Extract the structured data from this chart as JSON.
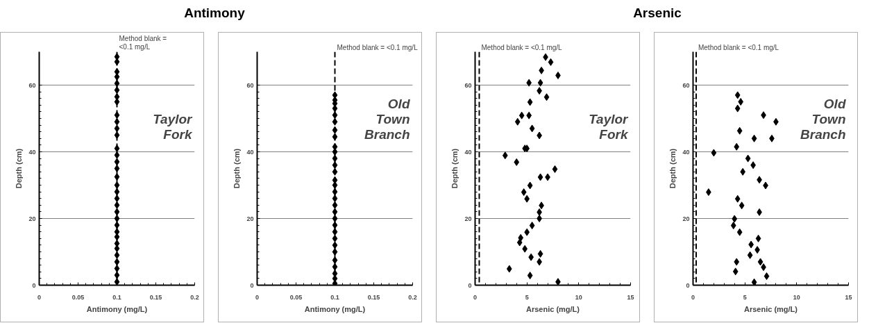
{
  "chart_data": [
    {
      "type": "scatter",
      "title": "Antimony",
      "xlabel": "Antimony (mg/L)",
      "ylabel": "Depth (cm)",
      "xlim": [
        0,
        0.2
      ],
      "xticks": [
        0,
        0.05,
        0.1,
        0.15,
        0.2
      ],
      "ylim": [
        0,
        70
      ],
      "yticks": [
        0,
        20,
        40,
        60
      ],
      "grid": "y",
      "marker": "diamond",
      "series": [
        {
          "color": "#000000",
          "x": [
            0.1,
            0.1,
            0.1,
            0.1,
            0.1,
            0.1,
            0.1,
            0.1,
            0.1,
            0.1,
            0.1,
            0.1,
            0.1,
            0.1,
            0.1,
            0.1,
            0.1,
            0.1,
            0.1,
            0.1,
            0.1,
            0.1,
            0.1,
            0.1,
            0.1,
            0.1,
            0.1,
            0.1,
            0.1,
            0.1,
            0.1,
            0.1,
            0.1
          ],
          "values": [
            68.5,
            67,
            64,
            62.5,
            60.5,
            58.5,
            56.5,
            55,
            51,
            49,
            47,
            45,
            41,
            39,
            37,
            35,
            32.5,
            30,
            28,
            26,
            24,
            22,
            20,
            18,
            16,
            14.5,
            12.5,
            11,
            9,
            7,
            5,
            3,
            1
          ]
        }
      ],
      "ref_lines": [
        {
          "axis": "x",
          "value": 0.1,
          "label": "Method blank =\n<0.1 mg/L",
          "line_style": "dashed",
          "color": "#000000"
        }
      ],
      "annotations": [
        "Taylor Fork"
      ]
    },
    {
      "type": "scatter",
      "xlabel": "Antimony (mg/L)",
      "ylabel": "Depth (cm)",
      "xlim": [
        0,
        0.2
      ],
      "xticks": [
        0,
        0.05,
        0.1,
        0.15,
        0.2
      ],
      "ylim": [
        0,
        70
      ],
      "yticks": [
        0,
        20,
        40,
        60
      ],
      "grid": "y",
      "marker": "diamond",
      "series": [
        {
          "color": "#000000",
          "x": [
            0.1,
            0.1,
            0.1,
            0.1,
            0.1,
            0.1,
            0.1,
            0.1,
            0.1,
            0.1,
            0.1,
            0.1,
            0.1,
            0.1,
            0.1,
            0.1,
            0.1,
            0.1,
            0.1,
            0.1,
            0.1,
            0.1,
            0.1,
            0.1,
            0.1,
            0.1,
            0.1,
            0.1,
            0.1,
            0.1
          ],
          "values": [
            57,
            55.5,
            54.5,
            53,
            51,
            49,
            46.5,
            44.5,
            41.5,
            40,
            38,
            36,
            34,
            31.5,
            30,
            28,
            26,
            24,
            22,
            20,
            18,
            16,
            14,
            12,
            10,
            7.5,
            5.5,
            3.5,
            2,
            0.5
          ]
        }
      ],
      "ref_lines": [
        {
          "axis": "x",
          "value": 0.1,
          "label": "Method blank = <0.1 mg/L",
          "line_style": "dashed",
          "color": "#000000"
        }
      ],
      "annotations": [
        "Old Town Branch"
      ]
    },
    {
      "type": "scatter",
      "title": "Arsenic",
      "xlabel": "Arsenic (mg/L)",
      "ylabel": "Depth (cm)",
      "xlim": [
        0,
        15
      ],
      "xticks": [
        0,
        5,
        10,
        15
      ],
      "ylim": [
        0,
        70
      ],
      "yticks": [
        0,
        20,
        40,
        60
      ],
      "grid": "y",
      "marker": "diamond",
      "series": [
        {
          "color": "#000000",
          "x": [
            6.8,
            7.3,
            6.4,
            8.0,
            5.2,
            6.3,
            6.2,
            6.9,
            5.3,
            4.5,
            5.2,
            4.1,
            5.5,
            6.2,
            4.8,
            5.0,
            2.9,
            4.0,
            7.7,
            6.3,
            7.0,
            5.3,
            4.7,
            5.0,
            6.4,
            6.2,
            6.2,
            5.5,
            5.0,
            4.4,
            4.3,
            4.8,
            6.3,
            5.4,
            6.2,
            3.3,
            5.3,
            8.0
          ],
          "values": [
            68.4,
            66.9,
            64.4,
            62.9,
            60.7,
            60.7,
            58.3,
            56.4,
            54.9,
            50.9,
            50.9,
            49,
            47,
            44.9,
            41,
            41,
            38.9,
            36.9,
            34.8,
            32.4,
            32.4,
            29.9,
            27.9,
            25.9,
            23.9,
            21.9,
            20,
            17.9,
            15.9,
            14.2,
            12.8,
            10.9,
            9.4,
            8.4,
            7,
            4.9,
            2.9,
            1
          ]
        }
      ],
      "ref_lines": [
        {
          "axis": "x",
          "value": 0.4,
          "label": "Method blank = <0.1 mg/L",
          "line_style": "dashed",
          "color": "#000000"
        }
      ],
      "annotations": [
        "Taylor Fork"
      ]
    },
    {
      "type": "scatter",
      "xlabel": "Arsenic (mg/L)",
      "ylabel": "Depth (cm)",
      "xlim": [
        0,
        15
      ],
      "xticks": [
        0,
        5,
        10,
        15
      ],
      "ylim": [
        0,
        70
      ],
      "yticks": [
        0,
        20,
        40,
        60
      ],
      "grid": "y",
      "marker": "diamond",
      "series": [
        {
          "color": "#000000",
          "x": [
            4.3,
            4.6,
            4.3,
            6.8,
            8.0,
            4.5,
            5.9,
            7.6,
            4.2,
            2.0,
            5.3,
            5.8,
            4.8,
            6.4,
            7.0,
            1.5,
            4.3,
            4.7,
            6.4,
            4.0,
            3.9,
            4.5,
            6.3,
            5.6,
            6.2,
            5.5,
            4.2,
            6.5,
            6.8,
            4.1,
            7.1,
            5.9
          ],
          "values": [
            57,
            55,
            53,
            51,
            49,
            46.3,
            44,
            44,
            41.5,
            39.7,
            38,
            36,
            34,
            31.6,
            29.9,
            27.9,
            25.9,
            23.9,
            21.9,
            19.9,
            17.9,
            15.9,
            14,
            12.2,
            10.6,
            9,
            7,
            7,
            5.4,
            4.1,
            2.7,
            0.9
          ]
        }
      ],
      "ref_lines": [
        {
          "axis": "x",
          "value": 0.3,
          "label": "Method blank = <0.1 mg/L",
          "line_style": "dashed",
          "color": "#000000"
        }
      ],
      "annotations": [
        "Old Town Branch"
      ]
    }
  ]
}
